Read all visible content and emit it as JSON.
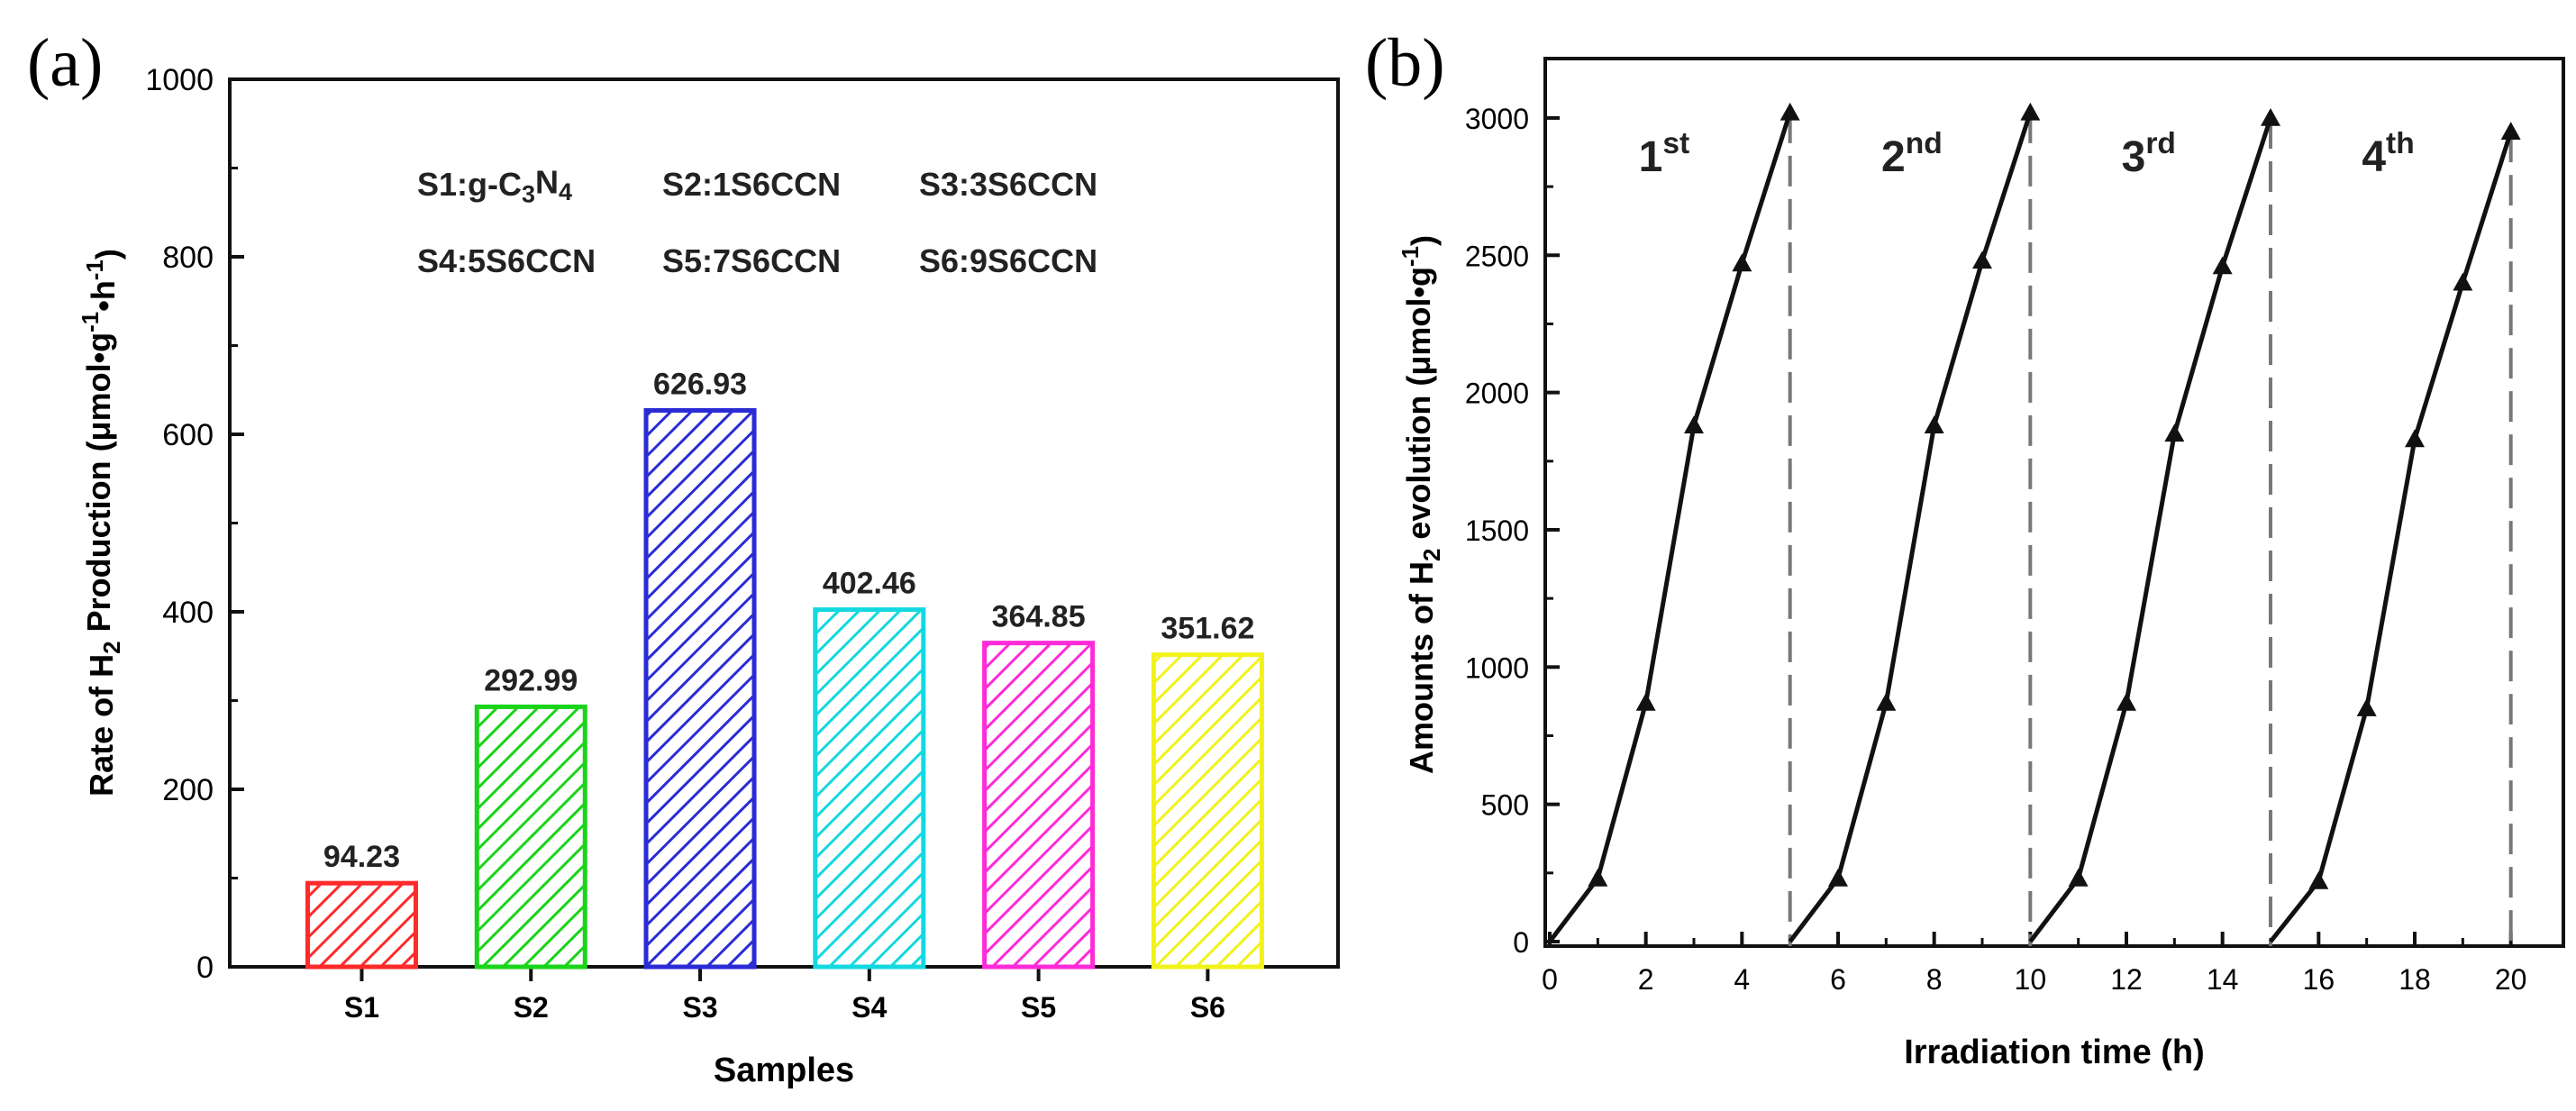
{
  "chart_data": [
    {
      "panel_label": "(a)",
      "type": "bar",
      "title": "",
      "xlabel": "Samples",
      "ylabel": {
        "parts": [
          "Rate of H",
          "2",
          " Production (μmol•g",
          "-1",
          "•h",
          "-1",
          ")"
        ]
      },
      "ylim": [
        0,
        1000
      ],
      "yticks": [
        0,
        200,
        400,
        600,
        800,
        1000
      ],
      "categories": [
        "S1",
        "S2",
        "S3",
        "S4",
        "S5",
        "S6"
      ],
      "values": [
        94.23,
        292.99,
        626.93,
        402.46,
        364.85,
        351.62
      ],
      "value_labels": [
        "94.23",
        "292.99",
        "626.93",
        "402.46",
        "364.85",
        "351.62"
      ],
      "colors": [
        "#ff2a2a",
        "#19d419",
        "#2b2bd6",
        "#14d8e0",
        "#ff2ad8",
        "#f2f21a"
      ],
      "legend_rows": [
        [
          {
            "parts": [
              "S1:g-C",
              "3",
              "N",
              "4"
            ]
          },
          {
            "parts": [
              "S2:1S6CCN"
            ]
          },
          {
            "parts": [
              "S3:3S6CCN"
            ]
          }
        ],
        [
          {
            "parts": [
              "S4:5S6CCN"
            ]
          },
          {
            "parts": [
              "S5:7S6CCN"
            ]
          },
          {
            "parts": [
              "S6:9S6CCN"
            ]
          }
        ]
      ]
    },
    {
      "panel_label": "(b)",
      "type": "line",
      "title": "",
      "xlabel": "Irradiation time (h)",
      "ylabel": {
        "parts": [
          "Amounts of H",
          "2",
          " evolution (μmol•g",
          "-1",
          ")"
        ]
      },
      "xlim": [
        0,
        21
      ],
      "ylim": [
        0,
        3200
      ],
      "xticks": [
        0,
        2,
        4,
        6,
        8,
        10,
        12,
        14,
        16,
        18,
        20
      ],
      "yticks": [
        0,
        500,
        1000,
        1500,
        2000,
        2500,
        3000
      ],
      "cycle_ends": [
        5,
        10,
        15,
        20
      ],
      "series": [
        {
          "name": "1st",
          "label_base": "1",
          "label_sup": "st",
          "x": [
            0,
            1,
            2,
            3,
            4,
            5
          ],
          "y": [
            0,
            230,
            870,
            1880,
            2470,
            3020
          ]
        },
        {
          "name": "2nd",
          "label_base": "2",
          "label_sup": "nd",
          "x": [
            5,
            6,
            7,
            8,
            9,
            10
          ],
          "y": [
            0,
            230,
            870,
            1880,
            2480,
            3020
          ]
        },
        {
          "name": "3rd",
          "label_base": "3",
          "label_sup": "rd",
          "x": [
            10,
            11,
            12,
            13,
            14,
            15
          ],
          "y": [
            0,
            230,
            870,
            1850,
            2460,
            3000
          ]
        },
        {
          "name": "4th",
          "label_base": "4",
          "label_sup": "th",
          "x": [
            15,
            16,
            17,
            18,
            19,
            20
          ],
          "y": [
            0,
            220,
            850,
            1830,
            2400,
            2950
          ]
        }
      ]
    }
  ]
}
